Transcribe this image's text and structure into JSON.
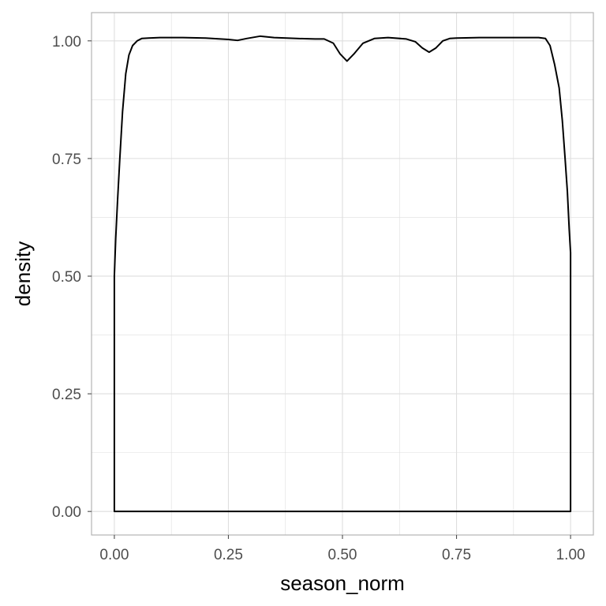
{
  "chart_data": {
    "type": "area",
    "title": "",
    "xlabel": "season_norm",
    "ylabel": "density",
    "xlim": [
      -0.05,
      1.05
    ],
    "ylim": [
      -0.05,
      1.06
    ],
    "grid": true,
    "legend": "none",
    "x_ticks": [
      "0.00",
      "0.25",
      "0.50",
      "0.75",
      "1.00"
    ],
    "x_tick_values": [
      0,
      0.25,
      0.5,
      0.75,
      1.0
    ],
    "y_ticks": [
      "0.00",
      "0.25",
      "0.50",
      "0.75",
      "1.00"
    ],
    "y_tick_values": [
      0,
      0.25,
      0.5,
      0.75,
      1.0
    ],
    "colors": {
      "line": "#000000",
      "grid": "#dedede",
      "panel_border": "#b3b3b3",
      "tick": "#4d4d4d"
    },
    "series": [
      {
        "x": [
          0.0,
          0.003,
          0.007,
          0.012,
          0.018,
          0.025,
          0.032,
          0.04,
          0.05,
          0.06,
          0.075,
          0.1,
          0.15,
          0.2,
          0.25,
          0.27,
          0.29,
          0.32,
          0.35,
          0.4,
          0.44,
          0.46,
          0.48,
          0.495,
          0.51,
          0.525,
          0.545,
          0.57,
          0.6,
          0.64,
          0.66,
          0.675,
          0.69,
          0.705,
          0.72,
          0.735,
          0.75,
          0.8,
          0.85,
          0.9,
          0.93,
          0.945,
          0.955,
          0.965,
          0.975,
          0.982,
          0.988,
          0.993,
          0.997,
          1.0
        ],
        "y": [
          0.5,
          0.58,
          0.66,
          0.75,
          0.85,
          0.93,
          0.97,
          0.99,
          1.0,
          1.005,
          1.006,
          1.007,
          1.007,
          1.006,
          1.003,
          1.001,
          1.005,
          1.01,
          1.007,
          1.005,
          1.004,
          1.004,
          0.995,
          0.972,
          0.957,
          0.972,
          0.995,
          1.005,
          1.007,
          1.004,
          0.998,
          0.985,
          0.976,
          0.985,
          1.0,
          1.005,
          1.006,
          1.007,
          1.007,
          1.007,
          1.007,
          1.005,
          0.99,
          0.95,
          0.9,
          0.83,
          0.75,
          0.68,
          0.6,
          0.55
        ]
      }
    ]
  }
}
